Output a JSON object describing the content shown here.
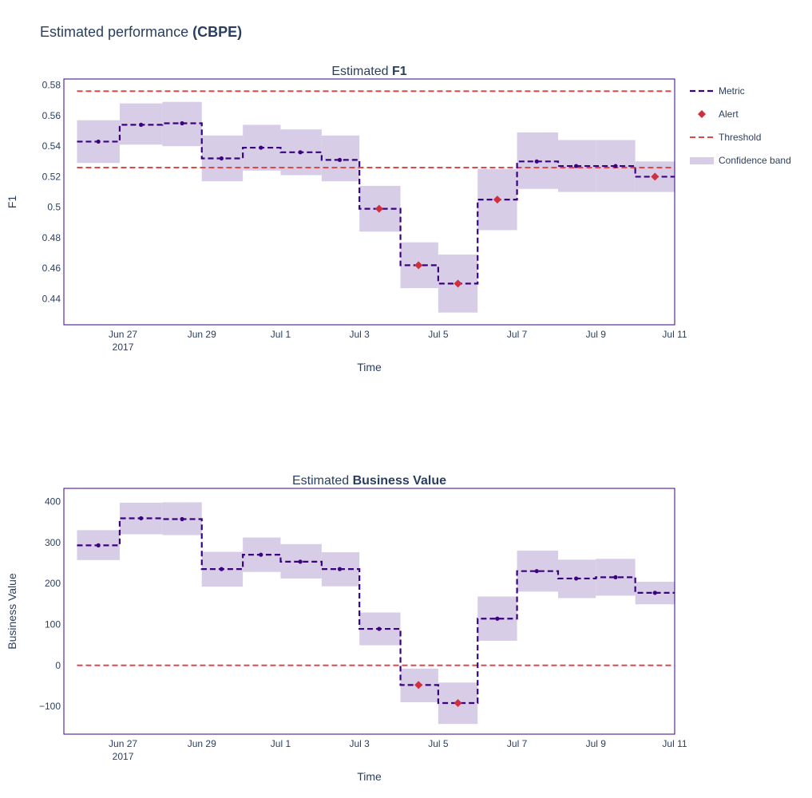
{
  "title": {
    "prefix": "Estimated performance ",
    "bold": "(CBPE)"
  },
  "colors": {
    "metric": "#3b0280",
    "band": "#d7cde6",
    "alert": "#d0303e",
    "threshold": "#e04848",
    "frame": "#3b0280"
  },
  "legend": {
    "metric": "Metric",
    "alert": "Alert",
    "threshold": "Threshold",
    "band": "Confidence band"
  },
  "chart_data": [
    {
      "type": "line",
      "title_prefix": "Estimated ",
      "title_bold": "F1",
      "xlabel": "Time",
      "ylabel": "F1",
      "x_domain": [
        "2017-06-25T12:00",
        "2017-07-11T00:00"
      ],
      "x_ticks": [
        "2017-06-27",
        "2017-06-29",
        "2017-07-01",
        "2017-07-03",
        "2017-07-05",
        "2017-07-07",
        "2017-07-09",
        "2017-07-11"
      ],
      "x_tick_labels": [
        "Jun 27",
        "Jun 29",
        "Jul 1",
        "Jul 3",
        "Jul 5",
        "Jul 7",
        "Jul 9",
        "Jul 11"
      ],
      "x_year_label": "2017",
      "ylim": [
        0.423,
        0.584
      ],
      "y_ticks": [
        0.44,
        0.46,
        0.48,
        0.5,
        0.52,
        0.54,
        0.56,
        0.58
      ],
      "y_tick_labels": [
        "0.44",
        "0.46",
        "0.48",
        "0.5",
        "0.52",
        "0.54",
        "0.56",
        "0.58"
      ],
      "thresholds": [
        0.576,
        0.526
      ],
      "chunks": [
        {
          "start": "2017-06-25T20:00",
          "end": "2017-06-26T22:00",
          "mid": "2017-06-26T09:00",
          "value": 0.543,
          "lower": 0.529,
          "upper": 0.557,
          "alert": false
        },
        {
          "start": "2017-06-26T22:00",
          "end": "2017-06-28T00:00",
          "mid": "2017-06-27T11:00",
          "value": 0.554,
          "lower": 0.541,
          "upper": 0.568,
          "alert": false
        },
        {
          "start": "2017-06-28T00:00",
          "end": "2017-06-29T00:00",
          "mid": "2017-06-28T12:00",
          "value": 0.555,
          "lower": 0.54,
          "upper": 0.569,
          "alert": false
        },
        {
          "start": "2017-06-29T00:00",
          "end": "2017-06-30T01:00",
          "mid": "2017-06-29T12:00",
          "value": 0.532,
          "lower": 0.517,
          "upper": 0.547,
          "alert": false
        },
        {
          "start": "2017-06-30T01:00",
          "end": "2017-07-01T00:00",
          "mid": "2017-06-30T12:00",
          "value": 0.539,
          "lower": 0.524,
          "upper": 0.554,
          "alert": false
        },
        {
          "start": "2017-07-01T00:00",
          "end": "2017-07-02T01:00",
          "mid": "2017-07-01T12:00",
          "value": 0.536,
          "lower": 0.521,
          "upper": 0.551,
          "alert": false
        },
        {
          "start": "2017-07-02T01:00",
          "end": "2017-07-03T00:00",
          "mid": "2017-07-02T12:00",
          "value": 0.531,
          "lower": 0.517,
          "upper": 0.547,
          "alert": false
        },
        {
          "start": "2017-07-03T00:00",
          "end": "2017-07-04T01:00",
          "mid": "2017-07-03T12:00",
          "value": 0.499,
          "lower": 0.484,
          "upper": 0.514,
          "alert": true
        },
        {
          "start": "2017-07-04T01:00",
          "end": "2017-07-05T00:00",
          "mid": "2017-07-04T12:00",
          "value": 0.462,
          "lower": 0.447,
          "upper": 0.477,
          "alert": true
        },
        {
          "start": "2017-07-05T00:00",
          "end": "2017-07-06T00:00",
          "mid": "2017-07-05T12:00",
          "value": 0.45,
          "lower": 0.431,
          "upper": 0.469,
          "alert": true
        },
        {
          "start": "2017-07-06T00:00",
          "end": "2017-07-07T00:00",
          "mid": "2017-07-06T12:00",
          "value": 0.505,
          "lower": 0.485,
          "upper": 0.525,
          "alert": true
        },
        {
          "start": "2017-07-07T00:00",
          "end": "2017-07-08T01:00",
          "mid": "2017-07-07T12:00",
          "value": 0.53,
          "lower": 0.512,
          "upper": 0.549,
          "alert": false
        },
        {
          "start": "2017-07-08T01:00",
          "end": "2017-07-09T00:00",
          "mid": "2017-07-08T12:00",
          "value": 0.527,
          "lower": 0.51,
          "upper": 0.544,
          "alert": false
        },
        {
          "start": "2017-07-09T00:00",
          "end": "2017-07-10T00:00",
          "mid": "2017-07-09T12:00",
          "value": 0.527,
          "lower": 0.51,
          "upper": 0.544,
          "alert": false
        },
        {
          "start": "2017-07-10T00:00",
          "end": "2017-07-11T00:00",
          "mid": "2017-07-10T12:00",
          "value": 0.52,
          "lower": 0.51,
          "upper": 0.53,
          "alert": true
        }
      ]
    },
    {
      "type": "line",
      "title_prefix": "Estimated ",
      "title_bold": "Business Value",
      "xlabel": "Time",
      "ylabel": "Business Value",
      "x_domain": [
        "2017-06-25T12:00",
        "2017-07-11T00:00"
      ],
      "x_ticks": [
        "2017-06-27",
        "2017-06-29",
        "2017-07-01",
        "2017-07-03",
        "2017-07-05",
        "2017-07-07",
        "2017-07-09",
        "2017-07-11"
      ],
      "x_tick_labels": [
        "Jun 27",
        "Jun 29",
        "Jul 1",
        "Jul 3",
        "Jul 5",
        "Jul 7",
        "Jul 9",
        "Jul 11"
      ],
      "x_year_label": "2017",
      "ylim": [
        -168,
        432
      ],
      "y_ticks": [
        -100,
        0,
        100,
        200,
        300,
        400
      ],
      "y_tick_labels": [
        "−100",
        "0",
        "100",
        "200",
        "300",
        "400"
      ],
      "thresholds": [
        0
      ],
      "chunks": [
        {
          "start": "2017-06-25T20:00",
          "end": "2017-06-26T22:00",
          "mid": "2017-06-26T09:00",
          "value": 293,
          "lower": 257,
          "upper": 330,
          "alert": false
        },
        {
          "start": "2017-06-26T22:00",
          "end": "2017-06-28T00:00",
          "mid": "2017-06-27T11:00",
          "value": 359,
          "lower": 320,
          "upper": 397,
          "alert": false
        },
        {
          "start": "2017-06-28T00:00",
          "end": "2017-06-29T00:00",
          "mid": "2017-06-28T12:00",
          "value": 357,
          "lower": 318,
          "upper": 398,
          "alert": false
        },
        {
          "start": "2017-06-29T00:00",
          "end": "2017-06-30T01:00",
          "mid": "2017-06-29T12:00",
          "value": 235,
          "lower": 192,
          "upper": 277,
          "alert": false
        },
        {
          "start": "2017-06-30T01:00",
          "end": "2017-07-01T00:00",
          "mid": "2017-06-30T12:00",
          "value": 270,
          "lower": 228,
          "upper": 312,
          "alert": false
        },
        {
          "start": "2017-07-01T00:00",
          "end": "2017-07-02T01:00",
          "mid": "2017-07-01T12:00",
          "value": 253,
          "lower": 212,
          "upper": 296,
          "alert": false
        },
        {
          "start": "2017-07-02T01:00",
          "end": "2017-07-03T00:00",
          "mid": "2017-07-02T12:00",
          "value": 235,
          "lower": 193,
          "upper": 276,
          "alert": false
        },
        {
          "start": "2017-07-03T00:00",
          "end": "2017-07-04T01:00",
          "mid": "2017-07-03T12:00",
          "value": 89,
          "lower": 49,
          "upper": 129,
          "alert": false
        },
        {
          "start": "2017-07-04T01:00",
          "end": "2017-07-05T00:00",
          "mid": "2017-07-04T12:00",
          "value": -48,
          "lower": -90,
          "upper": -8,
          "alert": true
        },
        {
          "start": "2017-07-05T00:00",
          "end": "2017-07-06T00:00",
          "mid": "2017-07-05T12:00",
          "value": -92,
          "lower": -143,
          "upper": -42,
          "alert": true
        },
        {
          "start": "2017-07-06T00:00",
          "end": "2017-07-07T00:00",
          "mid": "2017-07-06T12:00",
          "value": 114,
          "lower": 60,
          "upper": 168,
          "alert": false
        },
        {
          "start": "2017-07-07T00:00",
          "end": "2017-07-08T01:00",
          "mid": "2017-07-07T12:00",
          "value": 230,
          "lower": 180,
          "upper": 280,
          "alert": false
        },
        {
          "start": "2017-07-08T01:00",
          "end": "2017-07-09T00:00",
          "mid": "2017-07-08T12:00",
          "value": 212,
          "lower": 164,
          "upper": 258,
          "alert": false
        },
        {
          "start": "2017-07-09T00:00",
          "end": "2017-07-10T00:00",
          "mid": "2017-07-09T12:00",
          "value": 215,
          "lower": 170,
          "upper": 260,
          "alert": false
        },
        {
          "start": "2017-07-10T00:00",
          "end": "2017-07-11T00:00",
          "mid": "2017-07-10T12:00",
          "value": 177,
          "lower": 149,
          "upper": 204,
          "alert": false
        }
      ]
    }
  ]
}
